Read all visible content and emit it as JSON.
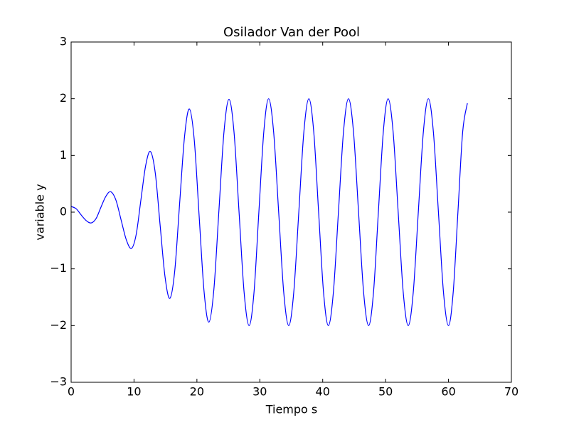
{
  "chart_data": {
    "type": "line",
    "title": "Osilador Van der Pool",
    "x_label": "Tiempo s",
    "y_label": "variable y",
    "color": "#0000ff",
    "x": [
      0,
      0.8,
      1.6,
      2.4,
      3.2,
      3.98,
      4.75,
      5.53,
      6.3,
      7.13,
      7.95,
      8.78,
      9.6,
      10.35,
      11.1,
      11.85,
      12.6,
      13.38,
      14.15,
      14.93,
      15.7,
      16.48,
      17.25,
      18.03,
      18.8,
      19.58,
      20.35,
      21.13,
      21.9,
      22.7,
      23.5,
      24.3,
      25.1,
      25.9,
      26.7,
      27.5,
      28.3,
      29.08,
      29.85,
      30.63,
      31.4,
      32.2,
      33.0,
      33.8,
      34.6,
      35.4,
      36.2,
      37.0,
      37.8,
      38.58,
      39.35,
      40.13,
      40.9,
      41.7,
      42.5,
      43.3,
      44.1,
      44.9,
      45.7,
      46.5,
      47.3,
      48.08,
      48.85,
      49.63,
      50.4,
      51.2,
      52.0,
      52.8,
      53.6,
      54.4,
      55.2,
      56.0,
      56.8,
      57.6,
      58.4,
      59.2,
      60.0,
      60.75,
      61.5,
      62.25,
      63.0
    ],
    "values": [
      0.1,
      0.06,
      -0.05,
      -0.15,
      -0.19,
      -0.11,
      0.09,
      0.28,
      0.36,
      0.21,
      -0.14,
      -0.49,
      -0.64,
      -0.39,
      0.22,
      0.82,
      1.07,
      0.69,
      -0.23,
      -1.14,
      -1.52,
      -1.03,
      0.15,
      1.33,
      1.82,
      1.27,
      -0.06,
      -1.39,
      -1.94,
      -1.36,
      0.03,
      1.41,
      1.99,
      1.41,
      0,
      -1.41,
      -2.0,
      -1.41,
      0,
      1.41,
      2.0,
      1.41,
      0,
      -1.41,
      -2.0,
      -1.41,
      0,
      1.41,
      2.0,
      1.41,
      0,
      -1.41,
      -2.0,
      -1.41,
      0,
      1.41,
      2.0,
      1.41,
      0,
      -1.41,
      -2.0,
      -1.41,
      0,
      1.41,
      2.0,
      1.41,
      0,
      -1.41,
      -2.0,
      -1.41,
      0,
      1.41,
      2.0,
      1.41,
      0,
      -1.41,
      -2.0,
      -1.41,
      0,
      1.41,
      1.92
    ],
    "xlim": [
      0,
      70
    ],
    "xticks": [
      0,
      10,
      20,
      30,
      40,
      50,
      60,
      70
    ],
    "ylim": [
      -3,
      3
    ],
    "yticks": [
      {
        "value": -3,
        "label": "−3"
      },
      {
        "value": -2,
        "label": "−2"
      },
      {
        "value": -1,
        "label": "−1"
      },
      0,
      1,
      2,
      3
    ],
    "grid": false
  }
}
